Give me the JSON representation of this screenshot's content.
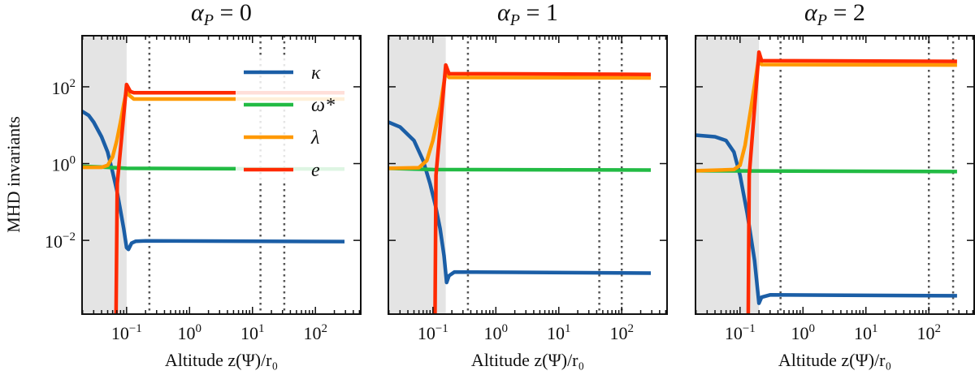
{
  "chart_data": {
    "type": "line",
    "ylabel": "MHD invariants",
    "xlabel": "Altitude z(Ψ)/r₀",
    "xscale": "log",
    "yscale": "log",
    "xlim": [
      0.0196,
      525
    ],
    "ylim": [
      0.00012,
      2140
    ],
    "xticks": [
      {
        "base": "10",
        "exp": "−1",
        "value": 0.1
      },
      {
        "base": "10",
        "exp": "0",
        "value": 1
      },
      {
        "base": "10",
        "exp": "1",
        "value": 10
      },
      {
        "base": "10",
        "exp": "2",
        "value": 100
      }
    ],
    "yticks": [
      {
        "base": "10",
        "exp": "2",
        "value": 100
      },
      {
        "base": "10",
        "exp": "0",
        "value": 1
      },
      {
        "base": "10",
        "exp": "−2",
        "value": 0.01
      }
    ],
    "grid": false,
    "legend": {
      "placement": "top-right of first panel",
      "entries": [
        {
          "label": "κ",
          "series": "kappa"
        },
        {
          "label": "ω*",
          "series": "omega"
        },
        {
          "label": "λ",
          "series": "lambda"
        },
        {
          "label": "e",
          "series": "e"
        }
      ]
    },
    "colors": {
      "kappa": "#1b5ea6",
      "omega": "#22bb44",
      "lambda": "#ff9900",
      "e": "#ff2a00",
      "shade": "#e4e4e4",
      "dotted": "#555555"
    },
    "panels": [
      {
        "title": {
          "sym": "α",
          "sub": "P",
          "rest": " = 0"
        },
        "shaded_until": 0.1,
        "dotted_x": [
          0.23,
          13.4,
          32
        ],
        "series": {
          "kappa": [
            [
              0.0196,
              23
            ],
            [
              0.025,
              18
            ],
            [
              0.03,
              12
            ],
            [
              0.04,
              5
            ],
            [
              0.05,
              2
            ],
            [
              0.06,
              0.6
            ],
            [
              0.07,
              0.2
            ],
            [
              0.08,
              0.06
            ],
            [
              0.09,
              0.02
            ],
            [
              0.1,
              0.0065
            ],
            [
              0.107,
              0.0058
            ],
            [
              0.12,
              0.0085
            ],
            [
              0.14,
              0.0095
            ],
            [
              0.2,
              0.0097
            ],
            [
              290,
              0.0093
            ]
          ],
          "omega": [
            [
              0.0196,
              0.85
            ],
            [
              0.05,
              0.8
            ],
            [
              0.1,
              0.75
            ],
            [
              290,
              0.72
            ]
          ],
          "lambda": [
            [
              0.0196,
              0.8
            ],
            [
              0.04,
              0.8
            ],
            [
              0.05,
              0.9
            ],
            [
              0.06,
              1.5
            ],
            [
              0.07,
              4
            ],
            [
              0.08,
              12
            ],
            [
              0.09,
              35
            ],
            [
              0.1,
              80
            ],
            [
              0.11,
              60
            ],
            [
              0.13,
              48
            ],
            [
              290,
              48
            ]
          ],
          "e": [
            [
              0.068,
              0.0001
            ],
            [
              0.071,
              0.3
            ],
            [
              0.1,
              115
            ],
            [
              0.115,
              75
            ],
            [
              0.13,
              70
            ],
            [
              290,
              70
            ]
          ]
        }
      },
      {
        "title": {
          "sym": "α",
          "sub": "P",
          "rest": " = 1"
        },
        "shaded_until": 0.16,
        "dotted_x": [
          0.36,
          44,
          100
        ],
        "series": {
          "kappa": [
            [
              0.0196,
              12
            ],
            [
              0.03,
              9
            ],
            [
              0.05,
              4
            ],
            [
              0.07,
              1.2
            ],
            [
              0.09,
              0.3
            ],
            [
              0.11,
              0.08
            ],
            [
              0.13,
              0.02
            ],
            [
              0.15,
              0.004
            ],
            [
              0.165,
              0.0008
            ],
            [
              0.18,
              0.0012
            ],
            [
              0.22,
              0.0015
            ],
            [
              290,
              0.0014
            ]
          ],
          "omega": [
            [
              0.0196,
              0.75
            ],
            [
              0.1,
              0.7
            ],
            [
              290,
              0.68
            ]
          ],
          "lambda": [
            [
              0.0196,
              0.75
            ],
            [
              0.06,
              0.78
            ],
            [
              0.08,
              1.2
            ],
            [
              0.1,
              4
            ],
            [
              0.13,
              30
            ],
            [
              0.16,
              250
            ],
            [
              0.18,
              175
            ],
            [
              290,
              170
            ]
          ],
          "e": [
            [
              0.108,
              0.0001
            ],
            [
              0.112,
              0.5
            ],
            [
              0.16,
              370
            ],
            [
              0.18,
              220
            ],
            [
              290,
              210
            ]
          ]
        }
      },
      {
        "title": {
          "sym": "α",
          "sub": "P",
          "rest": " = 2"
        },
        "shaded_until": 0.2,
        "dotted_x": [
          0.44,
          100,
          243
        ],
        "series": {
          "kappa": [
            [
              0.0196,
              5.5
            ],
            [
              0.04,
              5
            ],
            [
              0.06,
              4
            ],
            [
              0.08,
              2
            ],
            [
              0.1,
              0.5
            ],
            [
              0.13,
              0.05
            ],
            [
              0.17,
              0.003
            ],
            [
              0.2,
              0.00023
            ],
            [
              0.22,
              0.00033
            ],
            [
              0.3,
              0.00038
            ],
            [
              280,
              0.00036
            ]
          ],
          "omega": [
            [
              0.0196,
              0.65
            ],
            [
              280,
              0.62
            ]
          ],
          "lambda": [
            [
              0.0196,
              0.65
            ],
            [
              0.08,
              0.7
            ],
            [
              0.1,
              0.9
            ],
            [
              0.12,
              3
            ],
            [
              0.15,
              30
            ],
            [
              0.2,
              600
            ],
            [
              0.22,
              380
            ],
            [
              280,
              370
            ]
          ],
          "e": [
            [
              0.135,
              0.0001
            ],
            [
              0.14,
              0.5
            ],
            [
              0.2,
              800
            ],
            [
              0.22,
              480
            ],
            [
              280,
              460
            ]
          ]
        }
      }
    ]
  }
}
